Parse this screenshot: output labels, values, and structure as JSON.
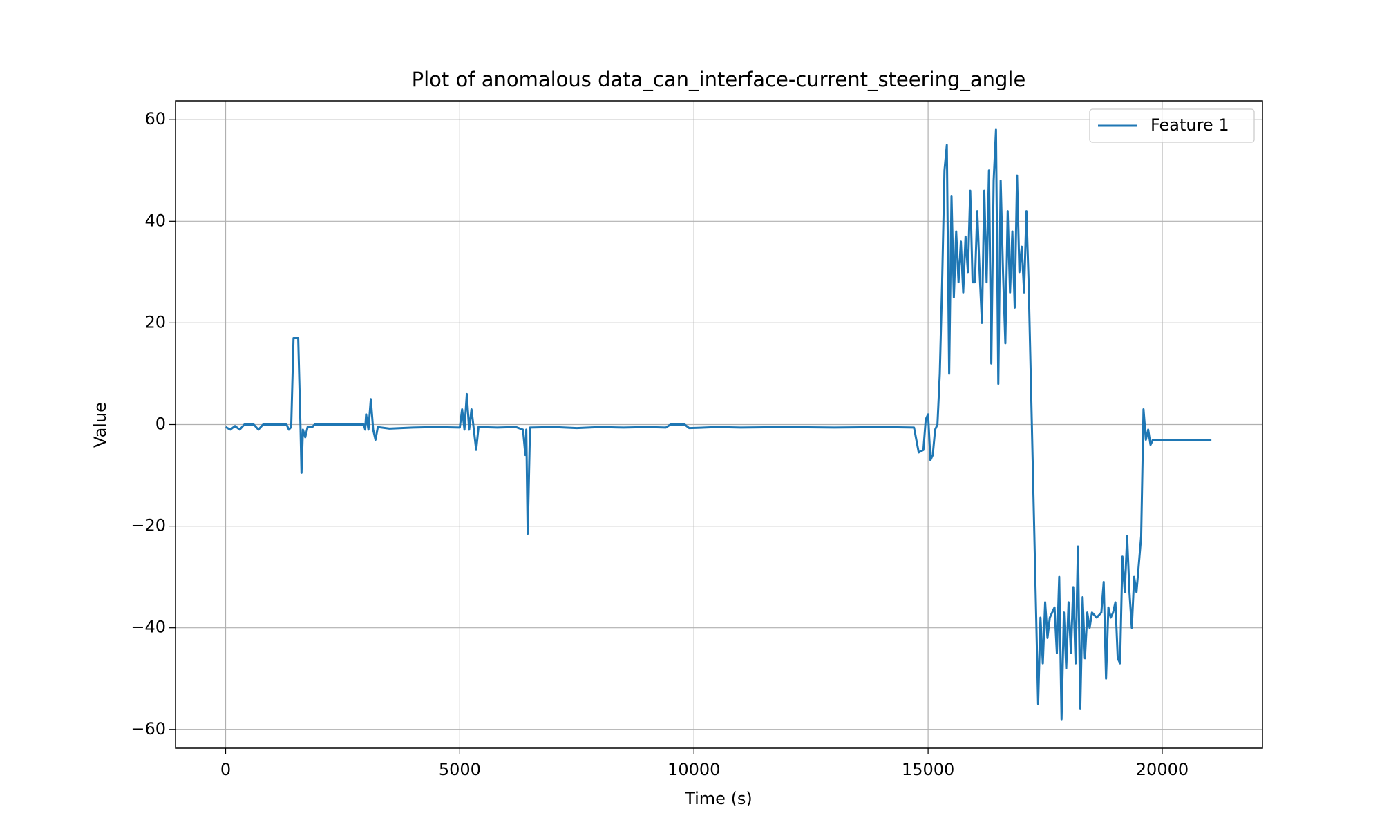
{
  "chart_data": {
    "type": "line",
    "title": "Plot of anomalous data_can_interface-current_steering_angle",
    "xlabel": "Time (s)",
    "ylabel": "Value",
    "x": [
      0,
      100,
      200,
      300,
      400,
      500,
      600,
      700,
      800,
      1000,
      1300,
      1350,
      1400,
      1450,
      1550,
      1600,
      1620,
      1650,
      1700,
      1750,
      1850,
      1900,
      2500,
      2950,
      2980,
      3000,
      3050,
      3100,
      3150,
      3200,
      3250,
      3500,
      4000,
      4500,
      5000,
      5050,
      5100,
      5150,
      5200,
      5250,
      5300,
      5350,
      5400,
      5800,
      6200,
      6350,
      6400,
      6420,
      6450,
      6500,
      7000,
      7500,
      8000,
      8500,
      9000,
      9400,
      9500,
      9800,
      9900,
      10500,
      11000,
      12000,
      13000,
      14000,
      14700,
      14800,
      14900,
      14950,
      15000,
      15050,
      15100,
      15150,
      15200,
      15250,
      15300,
      15350,
      15400,
      15450,
      15500,
      15550,
      15600,
      15650,
      15700,
      15750,
      15800,
      15850,
      15900,
      15950,
      16000,
      16050,
      16100,
      16150,
      16200,
      16250,
      16300,
      16350,
      16400,
      16450,
      16500,
      16550,
      16600,
      16650,
      16700,
      16750,
      16800,
      16850,
      16900,
      16950,
      17000,
      17050,
      17100,
      17150,
      17350,
      17400,
      17450,
      17500,
      17550,
      17600,
      17700,
      17750,
      17800,
      17850,
      17900,
      17950,
      18000,
      18050,
      18100,
      18150,
      18200,
      18250,
      18300,
      18350,
      18400,
      18450,
      18500,
      18600,
      18700,
      18750,
      18800,
      18850,
      18900,
      18950,
      19000,
      19050,
      19100,
      19150,
      19200,
      19250,
      19300,
      19350,
      19400,
      19450,
      19550,
      19600,
      19650,
      19700,
      19750,
      19800,
      19900,
      20000,
      20500,
      21000,
      21050
    ],
    "series": [
      {
        "name": "Feature 1",
        "color": "#1f77b4",
        "values": [
          -0.5,
          -1,
          -0.3,
          -1,
          0,
          0,
          0,
          -1,
          0,
          0,
          0,
          -1,
          -0.5,
          17,
          17,
          -1,
          -9.5,
          -1,
          -2.5,
          -0.5,
          -0.5,
          0,
          0,
          0,
          -1,
          2,
          -1,
          5,
          -1,
          -3,
          -0.5,
          -0.8,
          -0.6,
          -0.5,
          -0.6,
          3,
          -1,
          6,
          -1,
          3,
          -1,
          -5,
          -0.5,
          -0.6,
          -0.5,
          -1,
          -6,
          -1,
          -21.5,
          -0.6,
          -0.5,
          -0.7,
          -0.5,
          -0.6,
          -0.5,
          -0.6,
          0,
          0,
          -0.7,
          -0.5,
          -0.6,
          -0.5,
          -0.6,
          -0.5,
          -0.6,
          -5.5,
          -5,
          1,
          2,
          -7,
          -6,
          -1,
          0,
          10,
          28,
          50,
          55,
          10,
          45,
          25,
          38,
          28,
          36,
          26,
          37,
          30,
          46,
          28,
          28,
          42,
          30,
          20,
          46,
          28,
          50,
          12,
          48,
          58,
          8,
          48,
          30,
          16,
          42,
          26,
          38,
          23,
          49,
          30,
          35,
          26,
          42,
          27,
          -55,
          -38,
          -47,
          -35,
          -42,
          -38,
          -36,
          -45,
          -30,
          -58,
          -37,
          -48,
          -35,
          -45,
          -32,
          -47,
          -24,
          -56,
          -34,
          -46,
          -37,
          -40,
          -37,
          -38,
          -37,
          -31,
          -50,
          -36,
          -38,
          -37,
          -35,
          -46,
          -47,
          -26,
          -33,
          -22,
          -33,
          -40,
          -30,
          -33,
          -22,
          3,
          -3,
          -1,
          -4,
          -3,
          -3,
          -3,
          -3,
          -3,
          -3
        ]
      }
    ],
    "xlim": [
      -1070,
      22140
    ],
    "ylim": [
      -63.7,
      63.7
    ],
    "xticks": [
      0,
      5000,
      10000,
      15000,
      20000
    ],
    "yticks": [
      {
        "value": -60,
        "label": "−60"
      },
      {
        "value": -40,
        "label": "−40"
      },
      {
        "value": -20,
        "label": "−20"
      },
      0,
      20,
      40,
      60
    ],
    "grid": true,
    "legend": "upper right"
  }
}
